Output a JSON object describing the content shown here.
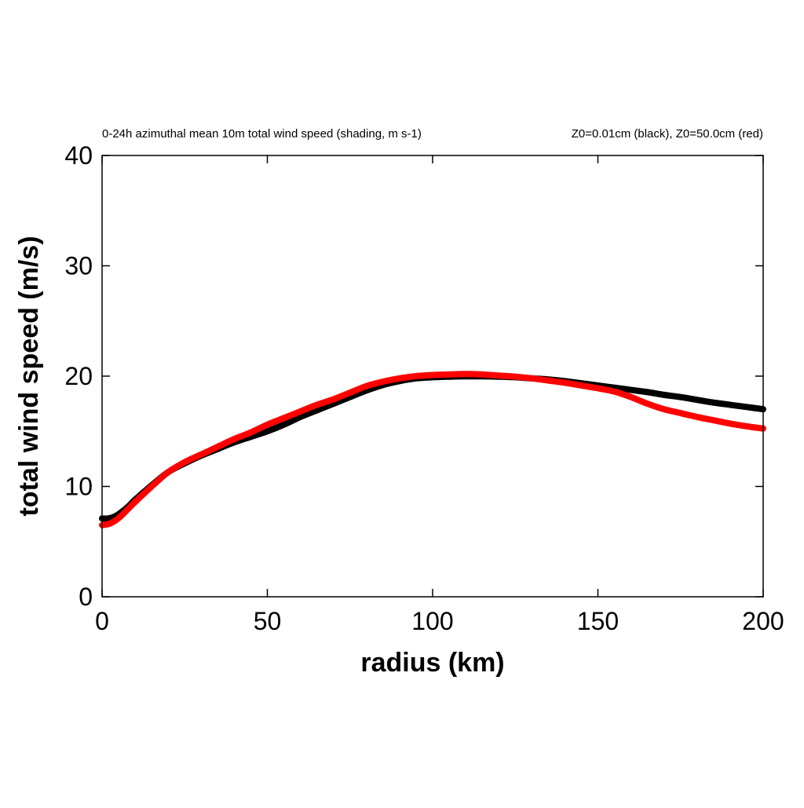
{
  "chart_data": {
    "type": "line",
    "title_left": "0-24h azimuthal mean 10m total wind speed (shading, m s-1)",
    "title_right": "Z0=0.01cm (black), Z0=50.0cm (red)",
    "xlabel": "radius (km)",
    "ylabel": "total wind speed (m/s)",
    "xlim": [
      0,
      200
    ],
    "ylim": [
      0,
      40
    ],
    "xticks": [
      0,
      50,
      100,
      150,
      200
    ],
    "xtick_labels": [
      "0",
      "50",
      "100",
      "150",
      "200"
    ],
    "yticks": [
      0,
      10,
      20,
      30,
      40
    ],
    "ytick_labels": [
      "0",
      "10",
      "20",
      "30",
      "40"
    ],
    "grid": false,
    "series": [
      {
        "color": "#000000",
        "x": [
          0,
          2,
          4,
          6,
          8,
          10,
          15,
          20,
          25,
          30,
          35,
          40,
          45,
          50,
          55,
          60,
          65,
          70,
          75,
          80,
          85,
          90,
          95,
          100,
          105,
          110,
          115,
          120,
          125,
          130,
          135,
          140,
          145,
          150,
          155,
          160,
          165,
          170,
          175,
          180,
          185,
          190,
          195,
          200
        ],
        "values": [
          7.1,
          7.1,
          7.3,
          7.7,
          8.2,
          8.8,
          10.1,
          11.3,
          12.1,
          12.8,
          13.4,
          14.0,
          14.5,
          15.0,
          15.6,
          16.3,
          16.9,
          17.5,
          18.1,
          18.7,
          19.2,
          19.55,
          19.8,
          19.9,
          19.95,
          19.98,
          19.98,
          19.95,
          19.9,
          19.8,
          19.7,
          19.55,
          19.35,
          19.15,
          18.95,
          18.75,
          18.55,
          18.3,
          18.1,
          17.85,
          17.6,
          17.4,
          17.2,
          17.0
        ]
      },
      {
        "color": "#ff0000",
        "x": [
          0,
          2,
          4,
          6,
          8,
          10,
          15,
          20,
          25,
          30,
          35,
          40,
          45,
          50,
          55,
          60,
          65,
          70,
          75,
          80,
          85,
          90,
          95,
          100,
          105,
          110,
          115,
          120,
          125,
          130,
          135,
          140,
          145,
          150,
          155,
          160,
          165,
          170,
          175,
          180,
          185,
          190,
          195,
          200
        ],
        "values": [
          6.5,
          6.6,
          6.9,
          7.4,
          8.0,
          8.6,
          10.0,
          11.3,
          12.2,
          12.9,
          13.6,
          14.3,
          14.9,
          15.6,
          16.2,
          16.8,
          17.4,
          17.9,
          18.5,
          19.1,
          19.5,
          19.8,
          20.0,
          20.1,
          20.15,
          20.2,
          20.15,
          20.05,
          19.95,
          19.8,
          19.6,
          19.4,
          19.15,
          18.9,
          18.6,
          18.1,
          17.5,
          17.0,
          16.65,
          16.3,
          16.0,
          15.7,
          15.45,
          15.25
        ]
      }
    ]
  }
}
